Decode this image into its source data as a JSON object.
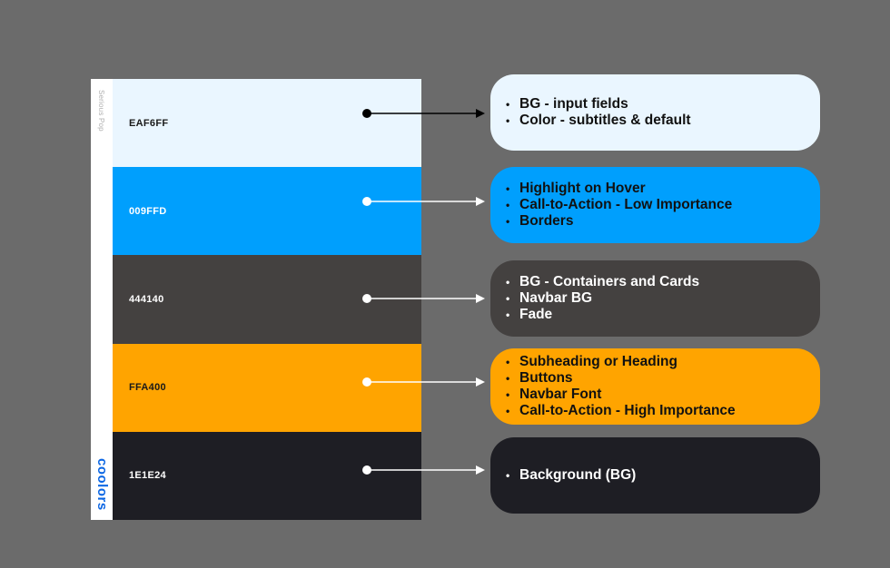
{
  "palette": {
    "name": "Serious Pop",
    "brand": "coolors",
    "swatches": [
      {
        "hex": "EAF6FF",
        "color": "#EAF6FF",
        "text_color": "#1a1a1a"
      },
      {
        "hex": "009FFD",
        "color": "#009FFD",
        "text_color": "#ffffff"
      },
      {
        "hex": "444140",
        "color": "#444140",
        "text_color": "#ffffff"
      },
      {
        "hex": "FFA400",
        "color": "#FFA400",
        "text_color": "#1a1a1a"
      },
      {
        "hex": "1E1E24",
        "color": "#1E1E24",
        "text_color": "#ffffff"
      }
    ]
  },
  "cards": [
    {
      "items": [
        "BG - input fields",
        "Color - subtitles & default"
      ],
      "color": "#EAF6FF",
      "text_color": "#111111",
      "arrow_color": "#000000"
    },
    {
      "items": [
        "Highlight on Hover",
        "Call-to-Action - Low Importance",
        "Borders"
      ],
      "color": "#009FFD",
      "text_color": "#111111",
      "arrow_color": "#ffffff"
    },
    {
      "items": [
        "BG - Containers and Cards",
        "Navbar BG",
        "Fade"
      ],
      "color": "#444140",
      "text_color": "#ffffff",
      "arrow_color": "#ffffff"
    },
    {
      "items": [
        "Subheading or Heading",
        "Buttons",
        "Navbar Font",
        "Call-to-Action - High Importance"
      ],
      "color": "#FFA400",
      "text_color": "#111111",
      "arrow_color": "#ffffff"
    },
    {
      "items": [
        "Background (BG)"
      ],
      "color": "#1E1E24",
      "text_color": "#ffffff",
      "arrow_color": "#ffffff"
    }
  ]
}
